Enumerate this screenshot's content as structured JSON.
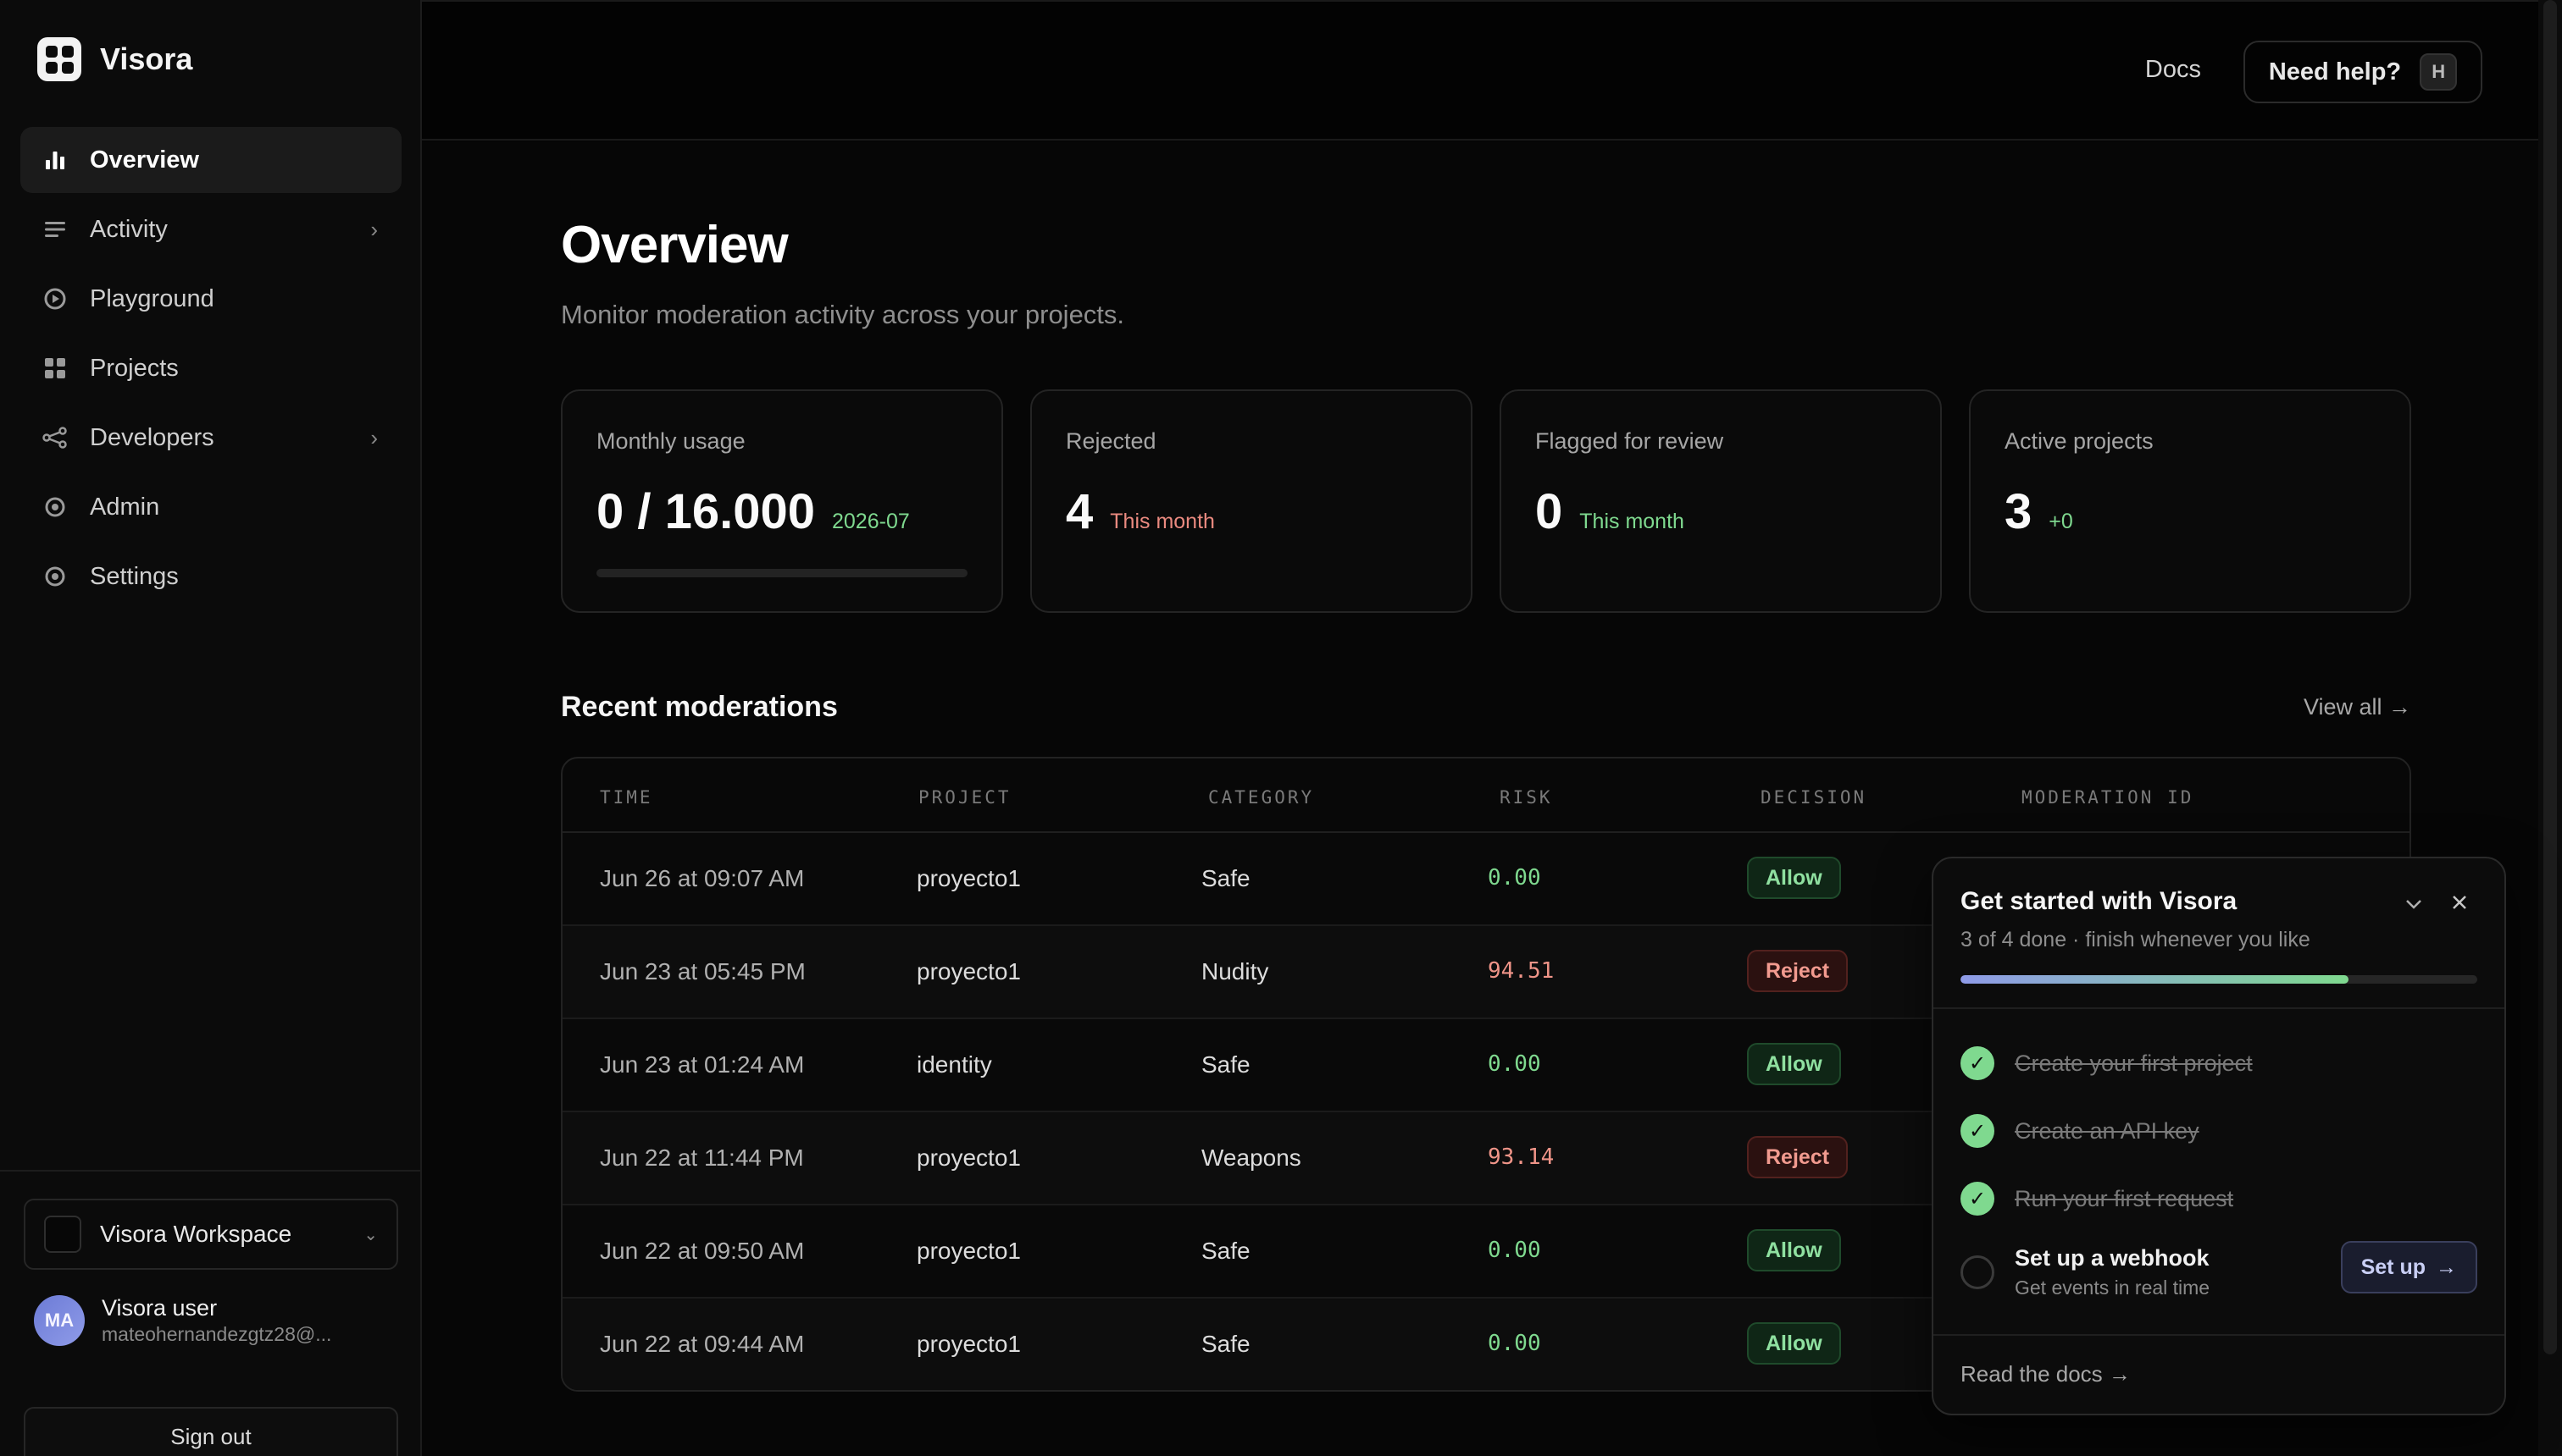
{
  "brand": {
    "name": "Visora"
  },
  "sidebar": {
    "items": [
      {
        "label": "Overview",
        "icon": "bar-chart-icon",
        "active": true
      },
      {
        "label": "Activity",
        "icon": "list-icon",
        "has_chevron": true
      },
      {
        "label": "Playground",
        "icon": "play-circle-icon"
      },
      {
        "label": "Projects",
        "icon": "grid-icon"
      },
      {
        "label": "Developers",
        "icon": "share-nodes-icon",
        "has_chevron": true
      },
      {
        "label": "Admin",
        "icon": "target-icon"
      },
      {
        "label": "Settings",
        "icon": "target-icon"
      }
    ],
    "workspace": "Visora Workspace",
    "user": {
      "initials": "MA",
      "name": "Visora user",
      "email": "mateohernandezgtz28@..."
    },
    "sign_out": "Sign out"
  },
  "header": {
    "docs": "Docs",
    "help": "Need help?",
    "help_key": "H"
  },
  "main": {
    "title": "Overview",
    "subtitle": "Monitor moderation activity across your projects.",
    "cards": [
      {
        "label": "Monthly usage",
        "value": "0 / 16.000",
        "note": "2026-07",
        "progress": 0
      },
      {
        "label": "Rejected",
        "value": "4",
        "note": "This month"
      },
      {
        "label": "Flagged for review",
        "value": "0",
        "note": "This month"
      },
      {
        "label": "Active projects",
        "value": "3",
        "note": "+0"
      }
    ],
    "recent_title": "Recent moderations",
    "view_all": "View all →",
    "table": {
      "headers": [
        "TIME",
        "PROJECT",
        "CATEGORY",
        "RISK",
        "DECISION",
        "MODERATION ID"
      ],
      "rows": [
        {
          "time": "Jun 26 at 09:07 AM",
          "project": "proyecto1",
          "category": "Safe",
          "risk": "0.00",
          "decision": "Allow"
        },
        {
          "time": "Jun 23 at 05:45 PM",
          "project": "proyecto1",
          "category": "Nudity",
          "risk": "94.51",
          "decision": "Reject"
        },
        {
          "time": "Jun 23 at 01:24 AM",
          "project": "identity",
          "category": "Safe",
          "risk": "0.00",
          "decision": "Allow"
        },
        {
          "time": "Jun 22 at 11:44 PM",
          "project": "proyecto1",
          "category": "Weapons",
          "risk": "93.14",
          "decision": "Reject"
        },
        {
          "time": "Jun 22 at 09:50 AM",
          "project": "proyecto1",
          "category": "Safe",
          "risk": "0.00",
          "decision": "Allow"
        },
        {
          "time": "Jun 22 at 09:44 AM",
          "project": "proyecto1",
          "category": "Safe",
          "risk": "0.00",
          "decision": "Allow"
        }
      ]
    }
  },
  "get_started": {
    "title": "Get started with Visora",
    "subtitle": "3 of 4 done · finish whenever you like",
    "progress": 0.75,
    "steps": [
      {
        "label": "Create your first project",
        "done": true
      },
      {
        "label": "Create an API key",
        "done": true
      },
      {
        "label": "Run your first request",
        "done": true
      },
      {
        "label": "Set up a webhook",
        "desc": "Get events in real time",
        "done": false,
        "action": "Set up"
      }
    ],
    "read_docs": "Read the docs →"
  },
  "colors": {
    "accent_green": "#7fd98f",
    "accent_red": "#ef9488",
    "accent_blue": "#8f9be8"
  }
}
